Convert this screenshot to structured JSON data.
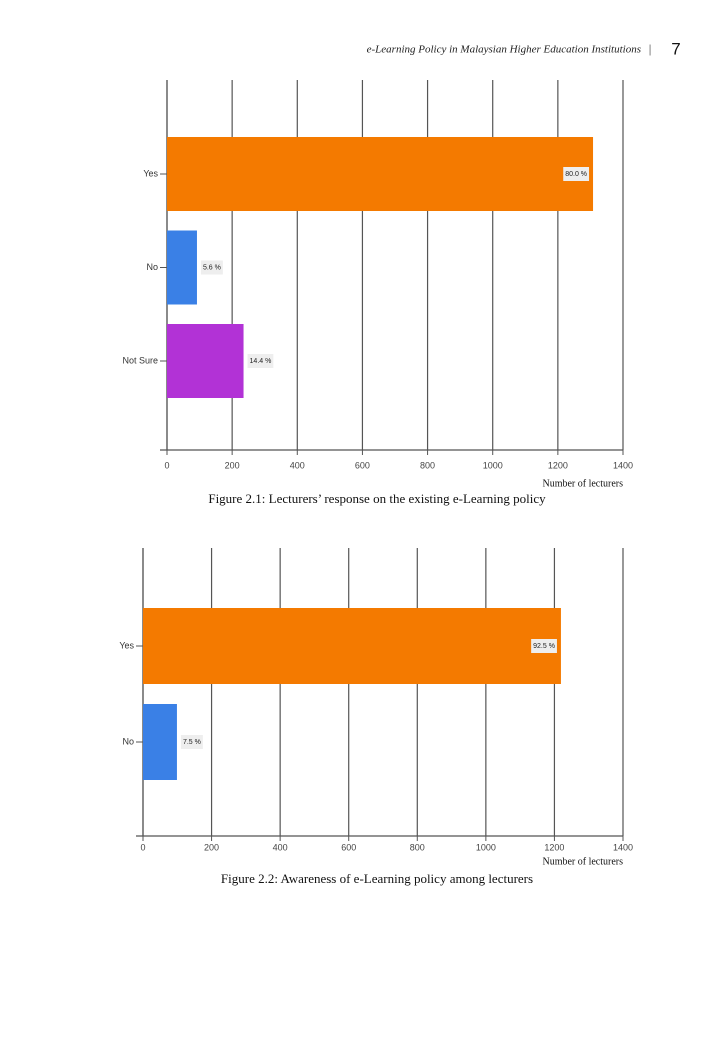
{
  "header": {
    "running_title": "e-Learning Policy in Malaysian Higher Education Institutions",
    "separator": "|",
    "page_number": "7"
  },
  "chart_data": [
    {
      "type": "bar",
      "orientation": "horizontal",
      "categories": [
        "Yes",
        "No",
        "Not Sure"
      ],
      "values": [
        1308,
        92,
        235
      ],
      "percent_labels": [
        "80.0 %",
        "5.6 %",
        "14.4 %"
      ],
      "colors": [
        "#f47a00",
        "#3a80e6",
        "#b232d6"
      ],
      "xlim": [
        0,
        1400
      ],
      "xticks": [
        0,
        200,
        400,
        600,
        800,
        1000,
        1200,
        1400
      ],
      "grid": true,
      "xlabel": "Number of lecturers",
      "caption": "Figure 2.1: Lecturers’ response on the existing e-Learning policy"
    },
    {
      "type": "bar",
      "orientation": "horizontal",
      "categories": [
        "Yes",
        "No"
      ],
      "values": [
        1219,
        99
      ],
      "percent_labels": [
        "92.5 %",
        "7.5 %"
      ],
      "colors": [
        "#f47a00",
        "#3a80e6"
      ],
      "xlim": [
        0,
        1400
      ],
      "xticks": [
        0,
        200,
        400,
        600,
        800,
        1000,
        1200,
        1400
      ],
      "grid": true,
      "xlabel": "Number of lecturers",
      "caption": "Figure 2.2: Awareness of e-Learning policy among lecturers"
    }
  ]
}
